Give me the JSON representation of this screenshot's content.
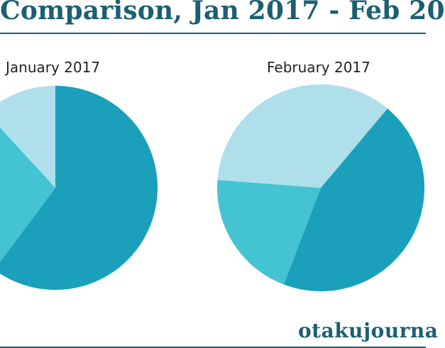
{
  "header": {
    "title": "Comparison, Jan 2017 - Feb 20"
  },
  "footer": {
    "brand": "otakujourna"
  },
  "colors": {
    "title": "#1c5f73",
    "rule": "#1c5f73"
  },
  "chart_data": [
    {
      "type": "pie",
      "title": "January 2017",
      "slices": [
        {
          "value": 60.2,
          "color": "#1aa0bb"
        },
        {
          "value": 28.0,
          "color": "#44c3d3"
        },
        {
          "value": 11.8,
          "color": "#aedfea"
        }
      ]
    },
    {
      "type": "pie",
      "title": "February 2017",
      "slices": [
        {
          "value": 44.7,
          "color": "#1aa0bb"
        },
        {
          "value": 20.4,
          "color": "#44c3d3"
        },
        {
          "value": 34.9,
          "color": "#aedfea"
        }
      ]
    }
  ]
}
